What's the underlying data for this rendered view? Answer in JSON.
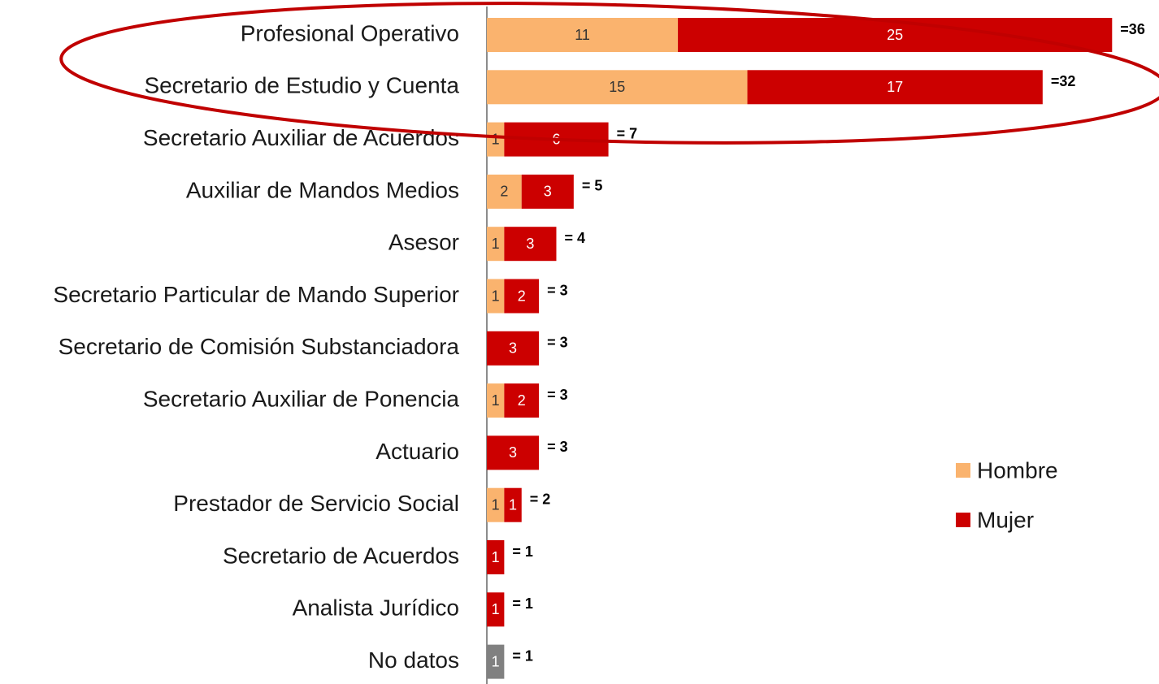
{
  "chart_data": {
    "type": "stacked-barh",
    "categories": [
      "Profesional Operativo",
      "Secretario de Estudio  y Cuenta",
      "Secretario Auxiliar de Acuerdos",
      "Auxiliar de Mandos Medios",
      "Asesor",
      "Secretario Particular de Mando Superior",
      "Secretario de Comisión Substanciadora",
      "Secretario Auxiliar de Ponencia",
      "Actuario",
      "Prestador de Servicio Social",
      "Secretario de Acuerdos",
      "Analista Jurídico",
      "No datos"
    ],
    "series": [
      {
        "name": "Hombre",
        "color": "#fab36e",
        "values": [
          11,
          15,
          1,
          2,
          1,
          1,
          null,
          1,
          null,
          1,
          null,
          null,
          null
        ]
      },
      {
        "name": "Mujer",
        "color": "#cc0000",
        "values": [
          25,
          17,
          6,
          3,
          3,
          2,
          3,
          2,
          3,
          1,
          1,
          1,
          null
        ]
      },
      {
        "color": "#808080",
        "values": [
          null,
          null,
          null,
          null,
          null,
          null,
          null,
          null,
          null,
          null,
          null,
          null,
          1
        ]
      }
    ],
    "totals": [
      36,
      32,
      7,
      5,
      4,
      3,
      3,
      3,
      3,
      2,
      1,
      1,
      1
    ],
    "total_labels": [
      "=36",
      "=32",
      "= 7",
      "= 5",
      "= 4",
      "= 3",
      "= 3",
      "= 3",
      "= 3",
      "= 2",
      "= 1",
      "= 1",
      "= 1"
    ],
    "xlim": [
      0,
      38.7
    ],
    "legend": "right"
  }
}
